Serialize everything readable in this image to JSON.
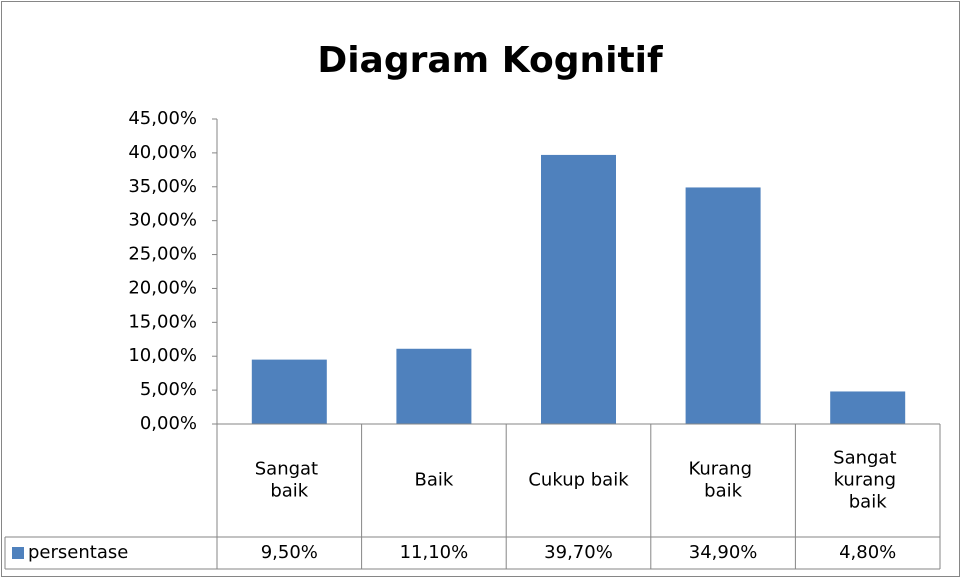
{
  "chart_data": {
    "type": "bar",
    "title": "Diagram Kognitif",
    "categories": [
      "Sangat baik",
      "Baik",
      "Cukup baik",
      "Kurang baik",
      "Sangat kurang baik"
    ],
    "series": [
      {
        "name": "persentase",
        "color": "#4f81bd",
        "values": [
          9.5,
          11.1,
          39.7,
          34.9,
          4.8
        ],
        "value_labels": [
          "9,50%",
          "11,10%",
          "39,70%",
          "34,90%",
          "4,80%"
        ]
      }
    ],
    "ylim": [
      0,
      45
    ],
    "yticks": [
      {
        "value": 0,
        "label": "0,00%"
      },
      {
        "value": 5,
        "label": "5,00%"
      },
      {
        "value": 10,
        "label": "10,00%"
      },
      {
        "value": 15,
        "label": "15,00%"
      },
      {
        "value": 20,
        "label": "20,00%"
      },
      {
        "value": 25,
        "label": "25,00%"
      },
      {
        "value": 30,
        "label": "30,00%"
      },
      {
        "value": 35,
        "label": "35,00%"
      },
      {
        "value": 40,
        "label": "40,00%"
      },
      {
        "value": 45,
        "label": "45,00%"
      }
    ],
    "grid": false,
    "data_table": true
  }
}
